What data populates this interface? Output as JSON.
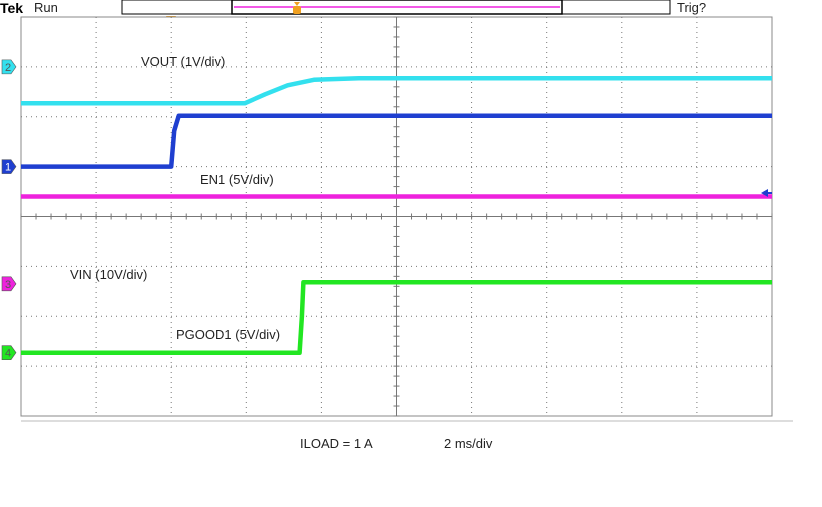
{
  "header": {
    "brand": "Tek",
    "status": "Run",
    "trigger_status": "Trig?"
  },
  "footer": {
    "load_text": "ILOAD = 1 A",
    "timebase_text": "2 ms/div"
  },
  "colors": {
    "ch1": "#1f3fd0",
    "ch2": "#33e0ee",
    "ch3": "#ee22dd",
    "ch4": "#22e622",
    "trigger": "#f0a020"
  },
  "chart_data": {
    "type": "line",
    "grid": true,
    "x_divisions": 10,
    "y_divisions": 8,
    "xlim": [
      0,
      10
    ],
    "ylim": [
      0,
      8
    ],
    "channel_markers": [
      {
        "channel": "2",
        "level_div": 7.0
      },
      {
        "channel": "1",
        "level_div": 5.0
      },
      {
        "channel": "3",
        "level_div": 2.65
      },
      {
        "channel": "4",
        "level_div": 1.27
      }
    ],
    "series": [
      {
        "id": "vout",
        "channel": "2",
        "label": "VOUT (1V/div)",
        "color": "#33e0ee",
        "points": [
          [
            0,
            6.27
          ],
          [
            2.98,
            6.27
          ],
          [
            3.25,
            6.45
          ],
          [
            3.55,
            6.63
          ],
          [
            3.9,
            6.74
          ],
          [
            4.5,
            6.77
          ],
          [
            10,
            6.77
          ]
        ]
      },
      {
        "id": "en1",
        "channel": "1",
        "label": "EN1 (5V/div)",
        "color": "#1f3fd0",
        "points": [
          [
            0,
            5.0
          ],
          [
            2.0,
            5.0
          ],
          [
            2.04,
            5.72
          ],
          [
            2.1,
            6.02
          ],
          [
            10,
            6.02
          ]
        ]
      },
      {
        "id": "vin",
        "channel": "3",
        "label": "VIN (10V/div)",
        "color": "#ee22dd",
        "points": [
          [
            0,
            4.4
          ],
          [
            10,
            4.4
          ]
        ]
      },
      {
        "id": "pgood1",
        "channel": "4",
        "label": "PGOOD1  (5V/div)",
        "color": "#22e622",
        "points": [
          [
            0,
            1.27
          ],
          [
            3.71,
            1.27
          ],
          [
            3.74,
            2.0
          ],
          [
            3.76,
            2.68
          ],
          [
            10,
            2.68
          ]
        ]
      }
    ]
  }
}
